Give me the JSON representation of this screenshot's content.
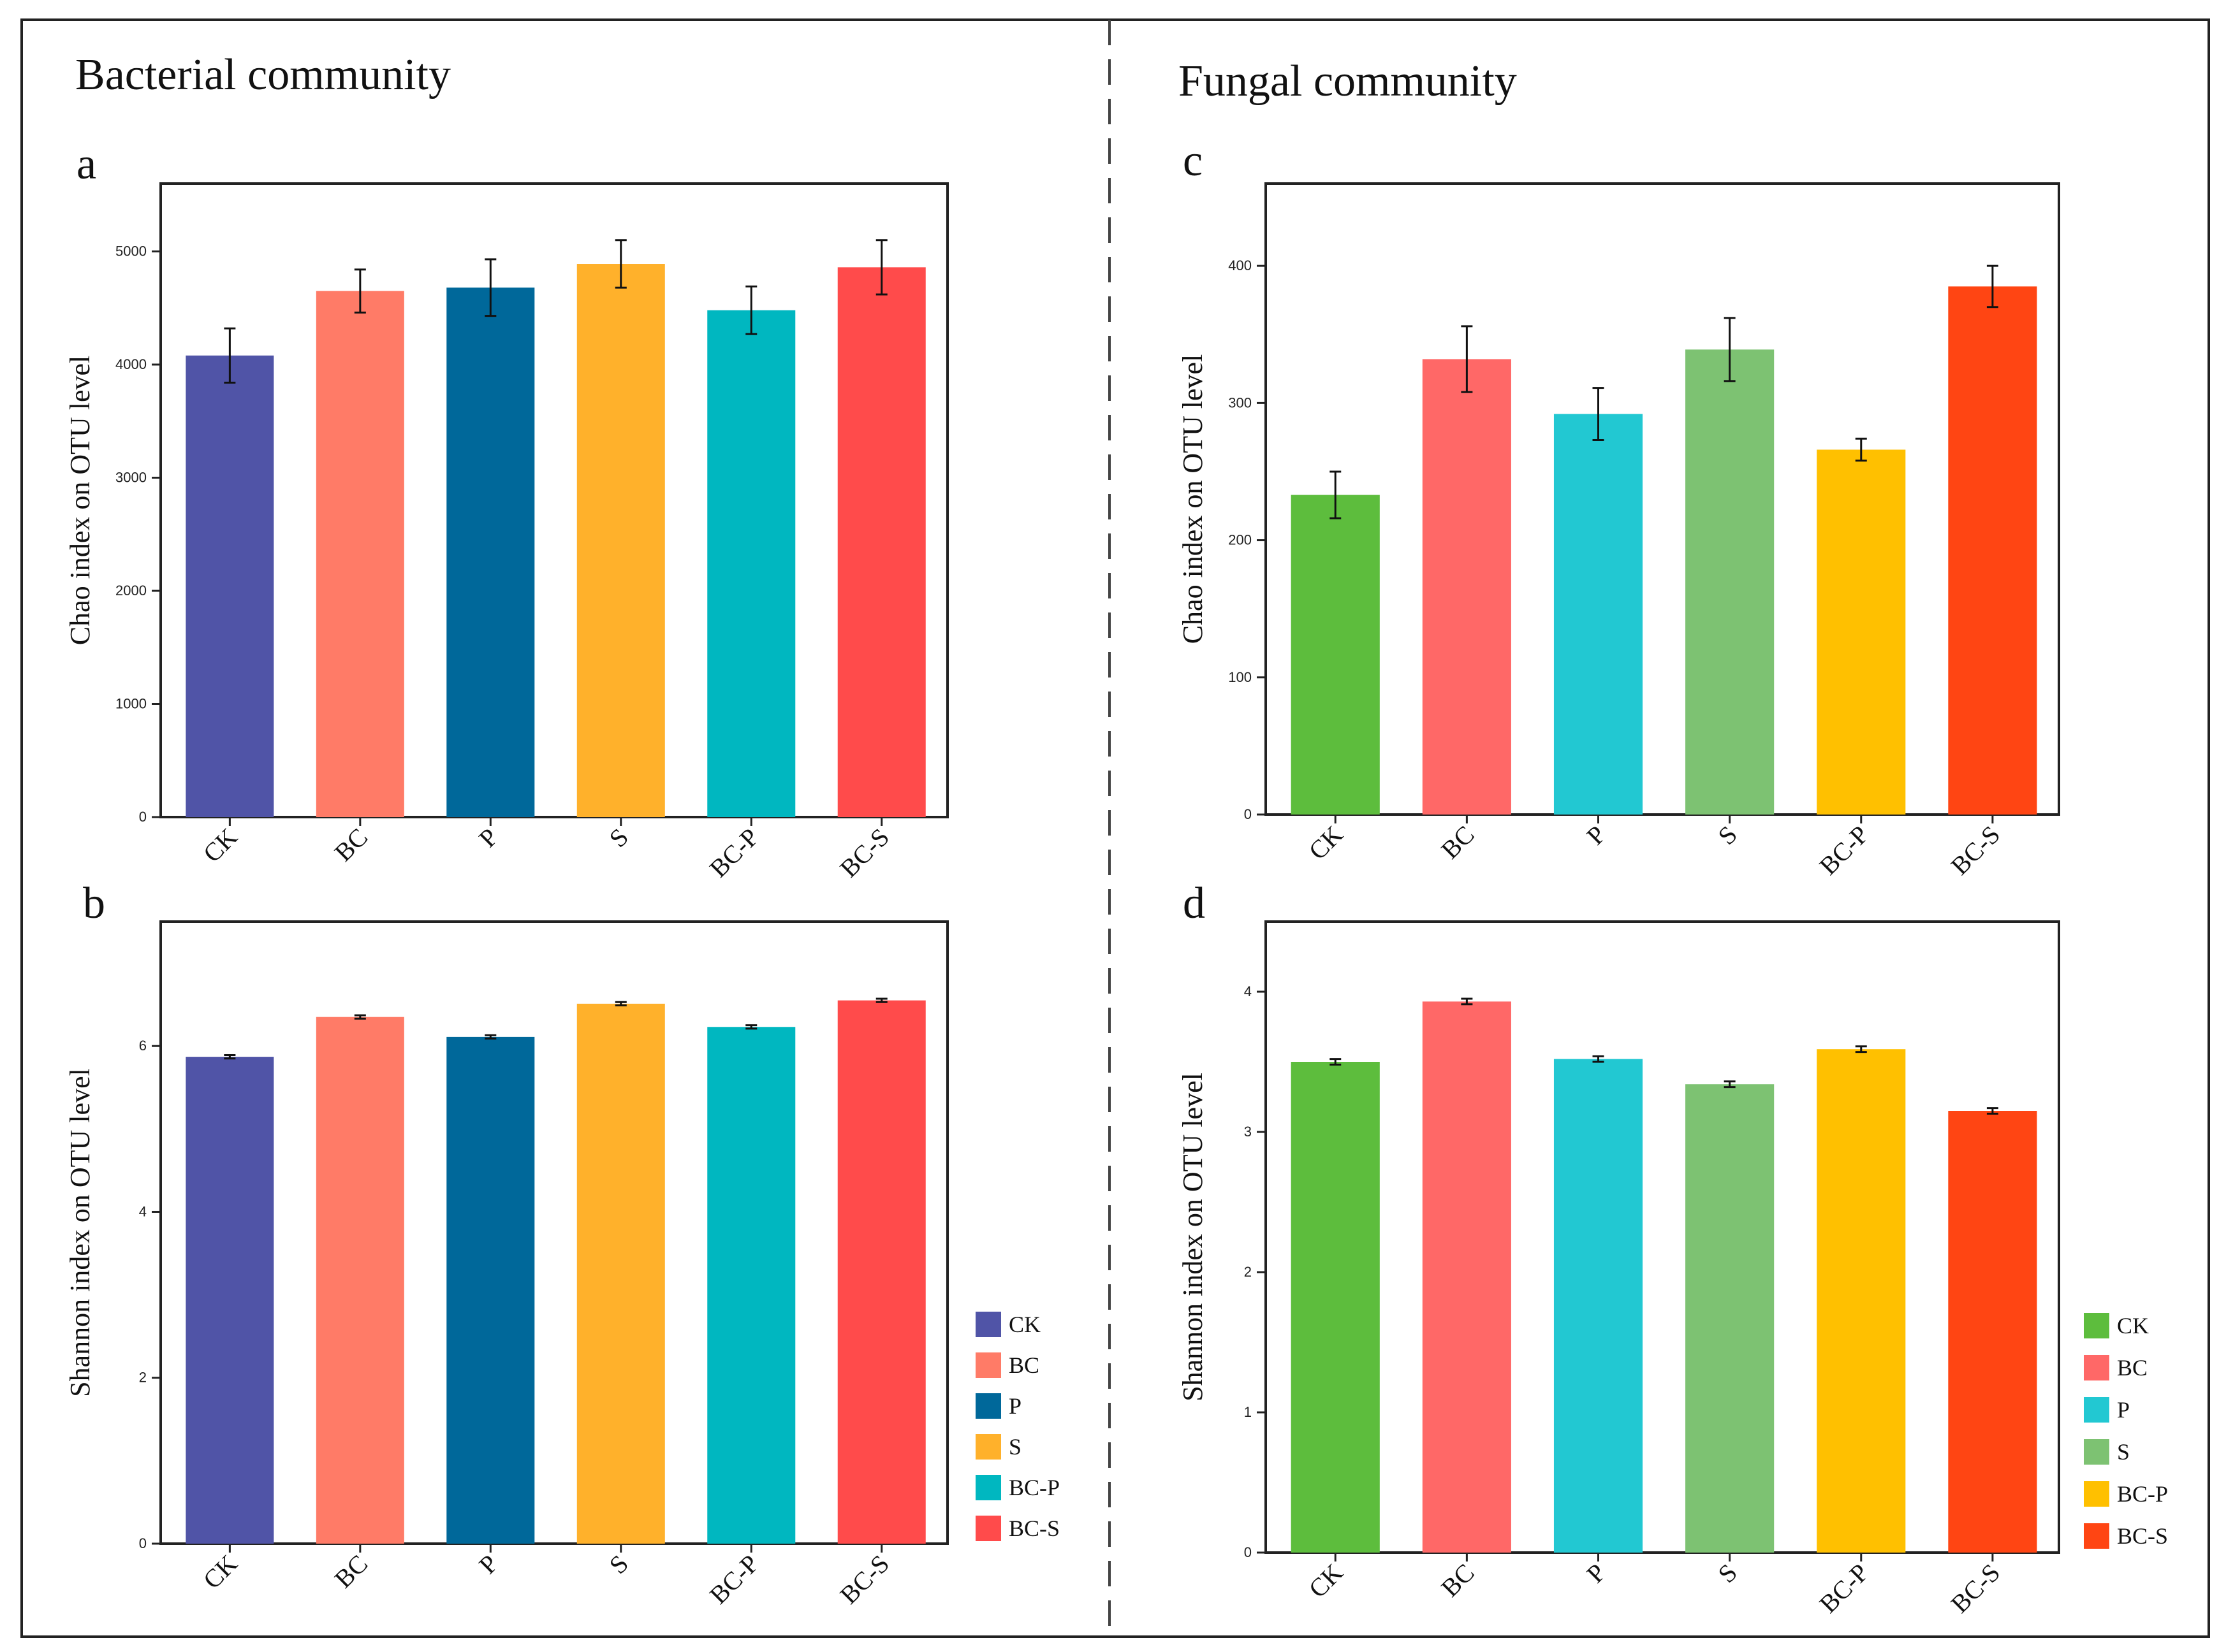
{
  "sections": {
    "left_title": "Bacterial community",
    "right_title": "Fungal community"
  },
  "chart_data": [
    {
      "id": "a",
      "type": "bar",
      "panel_label": "a",
      "ylabel": "Chao index on OTU level",
      "categories": [
        "CK",
        "BC",
        "P",
        "S",
        "BC-P",
        "BC-S"
      ],
      "values": [
        4080,
        4650,
        4680,
        4890,
        4480,
        4860
      ],
      "errors": [
        240,
        190,
        250,
        210,
        210,
        240
      ],
      "colors": [
        "#5054a7",
        "#ff7b67",
        "#00689a",
        "#ffb12b",
        "#00b7c0",
        "#ff4b4b"
      ],
      "ylim": [
        0,
        5600
      ],
      "yticks": [
        0,
        1000,
        2000,
        3000,
        4000,
        5000
      ]
    },
    {
      "id": "b",
      "type": "bar",
      "panel_label": "b",
      "ylabel": "Shannon index on OTU level",
      "categories": [
        "CK",
        "BC",
        "P",
        "S",
        "BC-P",
        "BC-S"
      ],
      "values": [
        5.87,
        6.35,
        6.11,
        6.51,
        6.23,
        6.55
      ],
      "errors": [
        0.02,
        0.02,
        0.02,
        0.02,
        0.02,
        0.02
      ],
      "colors": [
        "#5054a7",
        "#ff7b67",
        "#00689a",
        "#ffb12b",
        "#00b7c0",
        "#ff4b4b"
      ],
      "ylim": [
        0,
        7.5
      ],
      "yticks": [
        0,
        2,
        4,
        6
      ],
      "legend": {
        "position": "bottom-right",
        "entries": [
          "CK",
          "BC",
          "P",
          "S",
          "BC-P",
          "BC-S"
        ],
        "colors": [
          "#5054a7",
          "#ff7b67",
          "#00689a",
          "#ffb12b",
          "#00b7c0",
          "#ff4b4b"
        ]
      }
    },
    {
      "id": "c",
      "type": "bar",
      "panel_label": "c",
      "ylabel": "Chao index on OTU level",
      "categories": [
        "CK",
        "BC",
        "P",
        "S",
        "BC-P",
        "BC-S"
      ],
      "values": [
        233,
        332,
        292,
        339,
        266,
        385
      ],
      "errors": [
        17,
        24,
        19,
        23,
        8,
        15
      ],
      "colors": [
        "#5dbd3d",
        "#ff6867",
        "#22c8d2",
        "#7dc272",
        "#ffc000",
        "#ff4513"
      ],
      "ylim": [
        0,
        460
      ],
      "yticks": [
        0,
        100,
        200,
        300,
        400
      ]
    },
    {
      "id": "d",
      "type": "bar",
      "panel_label": "d",
      "ylabel": "Shannon index on OTU level",
      "categories": [
        "CK",
        "BC",
        "P",
        "S",
        "BC-P",
        "BC-S"
      ],
      "values": [
        3.5,
        3.93,
        3.52,
        3.34,
        3.59,
        3.15
      ],
      "errors": [
        0.02,
        0.02,
        0.02,
        0.02,
        0.02,
        0.02
      ],
      "colors": [
        "#5dbd3d",
        "#ff6867",
        "#22c8d2",
        "#7dc272",
        "#ffc000",
        "#ff4513"
      ],
      "ylim": [
        0,
        4.5
      ],
      "yticks": [
        0,
        1,
        2,
        3,
        4
      ],
      "legend": {
        "position": "bottom-right",
        "entries": [
          "CK",
          "BC",
          "P",
          "S",
          "BC-P",
          "BC-S"
        ],
        "colors": [
          "#5dbd3d",
          "#ff6867",
          "#22c8d2",
          "#7dc272",
          "#ffc000",
          "#ff4513"
        ]
      }
    }
  ]
}
